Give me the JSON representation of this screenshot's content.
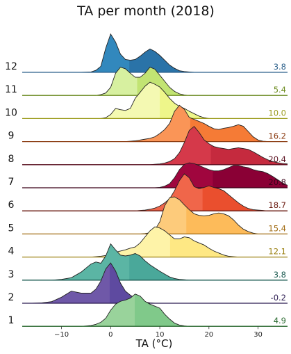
{
  "chart_data": {
    "type": "area",
    "subtype": "ridgeline",
    "title": "TA per month (2018)",
    "xlabel": "TA (°C)",
    "ylabel": "",
    "xlim": [
      -18,
      36
    ],
    "x_ticks": [
      -10,
      0,
      10,
      20,
      30
    ],
    "x_tick_labels": [
      "−10",
      "0",
      "10",
      "20",
      "30"
    ],
    "grid": false,
    "legend": "none",
    "x": [
      -18,
      -16,
      -14,
      -12,
      -10,
      -8,
      -6,
      -4,
      -3,
      -2,
      -1,
      0,
      1,
      2,
      3,
      4,
      5,
      6,
      7,
      8,
      9,
      10,
      11,
      12,
      13,
      14,
      15,
      16,
      17,
      18,
      19,
      20,
      21,
      22,
      23,
      24,
      25,
      26,
      27,
      28,
      29,
      30,
      31,
      32,
      33,
      34,
      35,
      36
    ],
    "series": [
      {
        "name": "12",
        "mean_label": "3.8",
        "mean": 3.8,
        "color": "#3288bd",
        "dark_color": "#2a73a8",
        "label_color": "#2a5f8a",
        "density": [
          0,
          0,
          0,
          0,
          0,
          0,
          0,
          0.01,
          0.05,
          0.15,
          0.6,
          0.95,
          0.75,
          0.45,
          0.32,
          0.3,
          0.32,
          0.4,
          0.5,
          0.58,
          0.52,
          0.42,
          0.3,
          0.18,
          0.1,
          0.04,
          0.02,
          0.01,
          0,
          0,
          0,
          0,
          0,
          0,
          0,
          0,
          0,
          0,
          0,
          0,
          0,
          0,
          0,
          0,
          0,
          0,
          0,
          0
        ]
      },
      {
        "name": "11",
        "mean_label": "5.4",
        "mean": 5.4,
        "color": "#d7f0a0",
        "dark_color": "#c2e473",
        "label_color": "#6d8c20",
        "density": [
          0,
          0,
          0,
          0,
          0,
          0,
          0,
          0,
          0,
          0.02,
          0.06,
          0.2,
          0.55,
          0.7,
          0.66,
          0.55,
          0.45,
          0.45,
          0.55,
          0.7,
          0.65,
          0.5,
          0.35,
          0.2,
          0.1,
          0.04,
          0.01,
          0,
          0,
          0,
          0,
          0,
          0,
          0,
          0,
          0,
          0,
          0,
          0,
          0,
          0,
          0,
          0,
          0,
          0,
          0,
          0,
          0
        ]
      },
      {
        "name": "10",
        "mean_label": "10.0",
        "mean": 10.0,
        "color": "#f4f9b2",
        "dark_color": "#eef68a",
        "label_color": "#9a9a1a",
        "density": [
          0,
          0,
          0,
          0,
          0,
          0,
          0,
          0,
          0,
          0,
          0.02,
          0.1,
          0.25,
          0.22,
          0.2,
          0.25,
          0.5,
          0.65,
          0.8,
          0.9,
          0.85,
          0.78,
          0.65,
          0.5,
          0.38,
          0.3,
          0.25,
          0.18,
          0.12,
          0.06,
          0.02,
          0,
          0,
          0,
          0,
          0,
          0,
          0,
          0,
          0,
          0,
          0,
          0,
          0,
          0,
          0,
          0,
          0
        ]
      },
      {
        "name": "9",
        "mean_label": "16.2",
        "mean": 16.2,
        "color": "#fa9557",
        "dark_color": "#f57b36",
        "label_color": "#8a3a10",
        "density": [
          0,
          0,
          0,
          0,
          0,
          0,
          0,
          0,
          0,
          0,
          0,
          0,
          0,
          0,
          0,
          0.01,
          0.02,
          0.04,
          0.06,
          0.08,
          0.12,
          0.2,
          0.3,
          0.45,
          0.75,
          0.9,
          0.8,
          0.6,
          0.55,
          0.5,
          0.45,
          0.38,
          0.32,
          0.3,
          0.33,
          0.35,
          0.38,
          0.42,
          0.38,
          0.25,
          0.12,
          0.04,
          0.01,
          0,
          0,
          0,
          0,
          0
        ]
      },
      {
        "name": "8",
        "mean_label": "20.4",
        "mean": 20.4,
        "color": "#d5394a",
        "dark_color": "#c52a3e",
        "label_color": "#5a1020",
        "density": [
          0,
          0,
          0,
          0,
          0,
          0,
          0,
          0,
          0,
          0,
          0,
          0,
          0,
          0,
          0,
          0,
          0,
          0,
          0,
          0,
          0.01,
          0.02,
          0.04,
          0.08,
          0.15,
          0.3,
          0.55,
          0.85,
          0.95,
          0.8,
          0.62,
          0.52,
          0.45,
          0.42,
          0.4,
          0.38,
          0.4,
          0.42,
          0.4,
          0.38,
          0.32,
          0.25,
          0.18,
          0.12,
          0.08,
          0.05,
          0.03,
          0.02
        ]
      },
      {
        "name": "7",
        "mean_label": "20.8",
        "mean": 20.8,
        "color": "#a0063e",
        "dark_color": "#8a0035",
        "label_color": "#3a0018",
        "density": [
          0,
          0,
          0,
          0,
          0,
          0,
          0,
          0,
          0,
          0,
          0,
          0,
          0,
          0,
          0,
          0,
          0,
          0,
          0,
          0,
          0,
          0.01,
          0.04,
          0.1,
          0.25,
          0.45,
          0.58,
          0.62,
          0.6,
          0.55,
          0.5,
          0.45,
          0.42,
          0.42,
          0.45,
          0.5,
          0.55,
          0.55,
          0.52,
          0.5,
          0.45,
          0.42,
          0.4,
          0.35,
          0.28,
          0.2,
          0.12,
          0.06
        ]
      },
      {
        "name": "6",
        "mean_label": "18.7",
        "mean": 18.7,
        "color": "#f0664a",
        "dark_color": "#ea4f2e",
        "label_color": "#6a1a10",
        "density": [
          0,
          0,
          0,
          0,
          0,
          0,
          0,
          0,
          0,
          0,
          0,
          0,
          0,
          0,
          0,
          0,
          0,
          0.01,
          0.02,
          0.04,
          0.07,
          0.12,
          0.2,
          0.3,
          0.5,
          0.75,
          0.92,
          0.82,
          0.6,
          0.55,
          0.58,
          0.62,
          0.58,
          0.55,
          0.5,
          0.4,
          0.3,
          0.2,
          0.12,
          0.06,
          0.03,
          0.02,
          0.01,
          0,
          0,
          0,
          0,
          0
        ]
      },
      {
        "name": "5",
        "mean_label": "15.4",
        "mean": 15.4,
        "color": "#fdcb7b",
        "dark_color": "#fdbb5a",
        "label_color": "#a06a10",
        "density": [
          0,
          0,
          0,
          0,
          0,
          0,
          0,
          0,
          0,
          0,
          0,
          0,
          0,
          0,
          0,
          0,
          0,
          0,
          0.01,
          0.03,
          0.1,
          0.3,
          0.7,
          0.9,
          0.92,
          0.85,
          0.72,
          0.6,
          0.5,
          0.46,
          0.45,
          0.46,
          0.5,
          0.52,
          0.5,
          0.45,
          0.35,
          0.22,
          0.12,
          0.06,
          0.02,
          0,
          0,
          0,
          0,
          0,
          0,
          0
        ]
      },
      {
        "name": "4",
        "mean_label": "12.1",
        "mean": 12.1,
        "color": "#fef3a8",
        "dark_color": "#fee884",
        "label_color": "#9a8010",
        "density": [
          0,
          0,
          0,
          0,
          0,
          0,
          0,
          0,
          0.01,
          0.02,
          0.04,
          0.08,
          0.12,
          0.15,
          0.18,
          0.22,
          0.25,
          0.35,
          0.5,
          0.65,
          0.75,
          0.72,
          0.65,
          0.55,
          0.45,
          0.45,
          0.5,
          0.48,
          0.4,
          0.35,
          0.3,
          0.22,
          0.15,
          0.1,
          0.05,
          0.02,
          0.01,
          0,
          0,
          0,
          0,
          0,
          0,
          0,
          0,
          0,
          0,
          0
        ]
      },
      {
        "name": "3",
        "mean_label": "3.8",
        "mean": 3.8,
        "color": "#5bb5a4",
        "dark_color": "#4aa89a",
        "label_color": "#1a5a50",
        "density": [
          0,
          0,
          0,
          0,
          0.02,
          0.06,
          0.2,
          0.4,
          0.45,
          0.42,
          0.6,
          0.9,
          0.75,
          0.62,
          0.6,
          0.62,
          0.66,
          0.6,
          0.48,
          0.38,
          0.3,
          0.22,
          0.15,
          0.08,
          0.04,
          0.02,
          0.01,
          0,
          0,
          0,
          0,
          0,
          0,
          0,
          0,
          0,
          0,
          0,
          0,
          0,
          0,
          0,
          0,
          0,
          0,
          0,
          0,
          0
        ]
      },
      {
        "name": "2",
        "mean_label": "-0.2",
        "mean": -0.2,
        "color": "#6f58a8",
        "dark_color": "#5e4aa0",
        "label_color": "#2a1a50",
        "density": [
          0,
          0,
          0.01,
          0.04,
          0.15,
          0.3,
          0.25,
          0.25,
          0.35,
          0.55,
          0.85,
          1.0,
          0.8,
          0.5,
          0.3,
          0.2,
          0.12,
          0.06,
          0.03,
          0.01,
          0,
          0,
          0,
          0,
          0,
          0,
          0,
          0,
          0,
          0,
          0,
          0,
          0,
          0,
          0,
          0,
          0,
          0,
          0,
          0,
          0,
          0,
          0,
          0,
          0,
          0,
          0,
          0
        ]
      },
      {
        "name": "1",
        "mean_label": "4.9",
        "mean": 4.9,
        "color": "#99d39b",
        "dark_color": "#80c98a",
        "label_color": "#2a6a30",
        "density": [
          0,
          0,
          0,
          0,
          0,
          0,
          0,
          0.02,
          0.05,
          0.1,
          0.2,
          0.4,
          0.55,
          0.62,
          0.65,
          0.7,
          0.8,
          0.75,
          0.62,
          0.55,
          0.5,
          0.45,
          0.3,
          0.18,
          0.08,
          0.03,
          0.01,
          0,
          0,
          0,
          0,
          0,
          0,
          0,
          0,
          0,
          0,
          0,
          0,
          0,
          0,
          0,
          0,
          0,
          0,
          0,
          0,
          0
        ]
      }
    ]
  }
}
